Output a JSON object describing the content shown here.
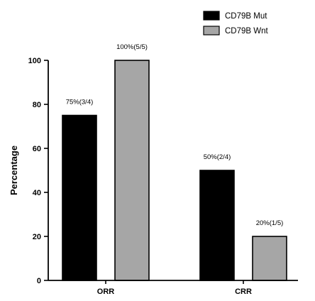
{
  "chart_data": {
    "type": "bar",
    "ylabel": "Percentage",
    "xlabel": "",
    "ylim": [
      0,
      100
    ],
    "yticks": [
      0,
      20,
      40,
      60,
      80,
      100
    ],
    "categories": [
      "ORR",
      "CRR"
    ],
    "series": [
      {
        "name": "CD79B Mut",
        "color": "#000000",
        "values": [
          75,
          50
        ],
        "labels": [
          "75%(3/4)",
          "50%(2/4)"
        ]
      },
      {
        "name": "CD79B Wnt",
        "color": "#a6a6a6",
        "values": [
          100,
          20
        ],
        "labels": [
          "100%(5/5)",
          "20%(1/5)"
        ]
      }
    ],
    "legend_position": "top-right",
    "grid": false
  }
}
